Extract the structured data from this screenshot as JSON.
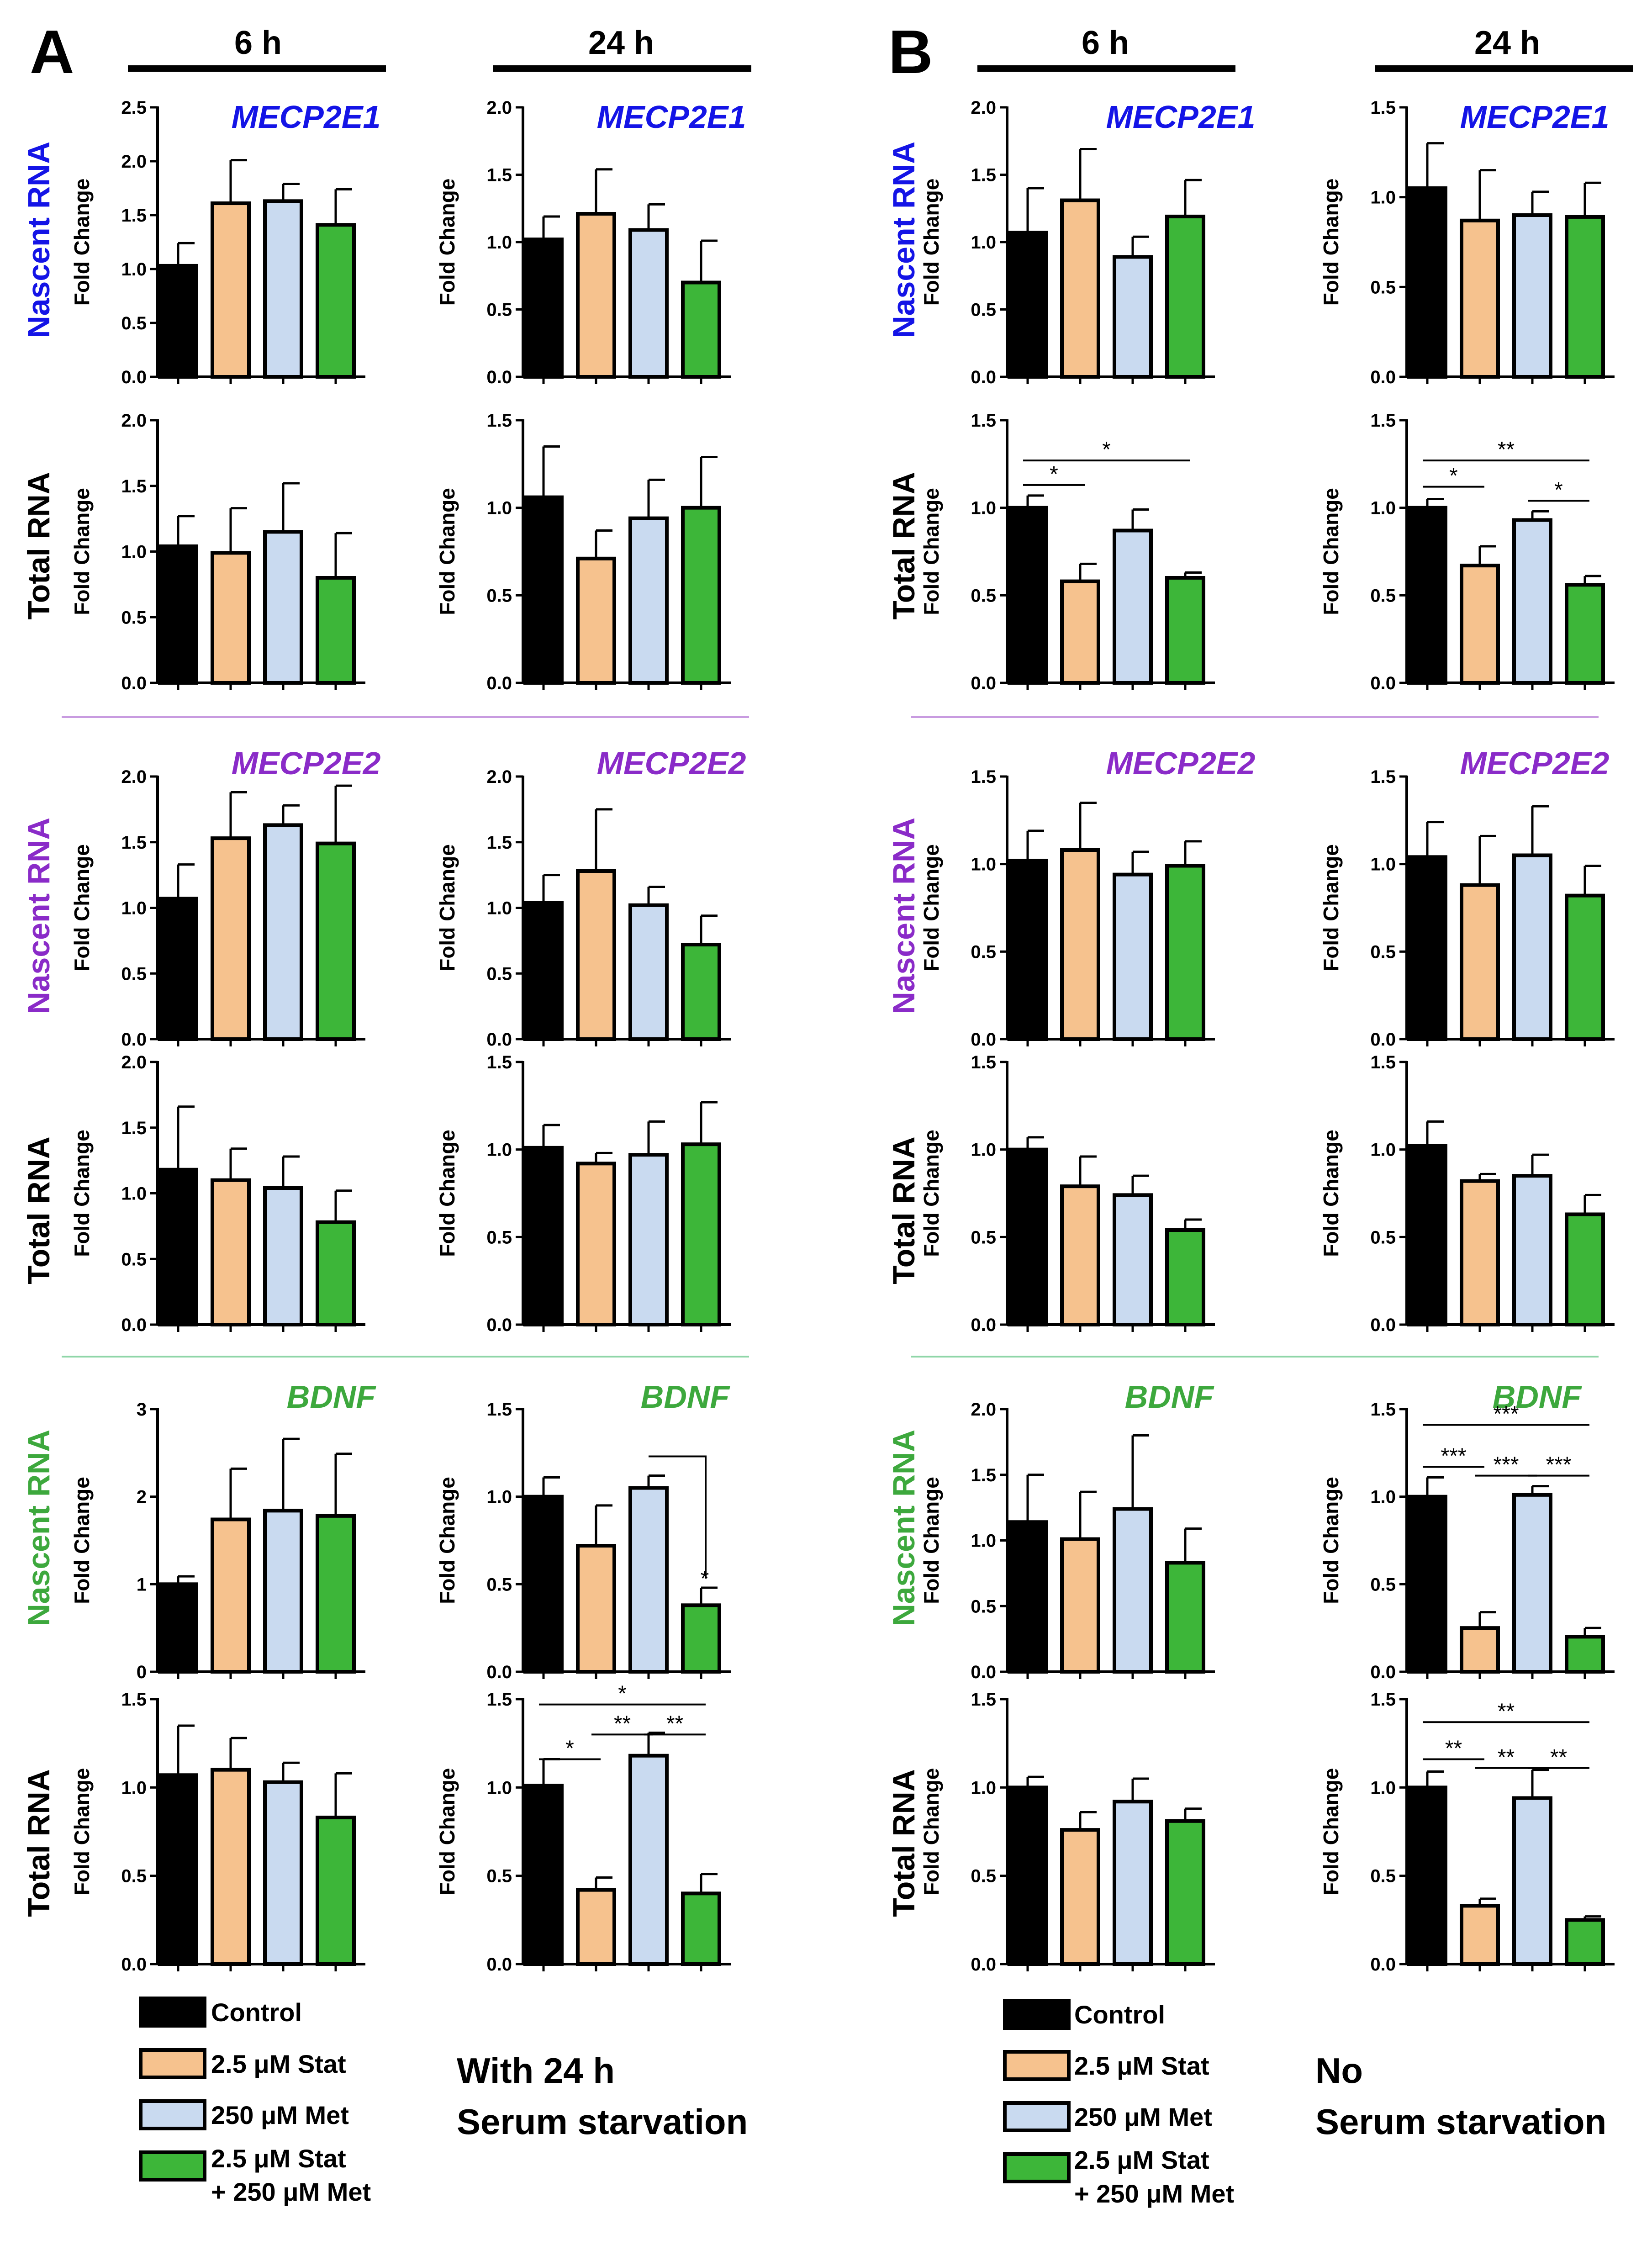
{
  "colors": {
    "control": "#000000",
    "stat": "#F6C28E",
    "met": "#C9DAF0",
    "combo": "#3DB639",
    "mecp2e1": "#1414E6",
    "mecp2e2": "#8A2BC8",
    "bdnf": "#3DA83D",
    "sep_purple": "#C89BE0",
    "sep_green": "#8FD6A8"
  },
  "panels": {
    "A": {
      "letter": "A",
      "col1": "6 h",
      "col2": "24 h"
    },
    "B": {
      "letter": "B",
      "col1": "6 h",
      "col2": "24 h"
    }
  },
  "row_labels": {
    "nascent": "Nascent RNA",
    "total": "Total RNA"
  },
  "genes": {
    "mecp2e1": "MECP2E1",
    "mecp2e2": "MECP2E2",
    "bdnf": "BDNF"
  },
  "legend": {
    "items": [
      "Control",
      "2.5 μM Stat",
      "250 μM Met",
      "2.5 μM Stat",
      "+ 250 μM Met"
    ]
  },
  "conditions": {
    "A": {
      "line1": "With 24 h",
      "line2": "Serum starvation"
    },
    "B": {
      "line1": "No",
      "line2": "Serum starvation"
    }
  },
  "chart_data": [
    {
      "id": "A-6h-E1-nascent",
      "panel": "A",
      "time": "6 h",
      "gene": "MECP2E1",
      "rna": "Nascent RNA",
      "type": "bar",
      "ylabel": "Fold Change",
      "categories": [
        "Control",
        "2.5 μM Stat",
        "250 μM Met",
        "2.5 μM Stat + 250 μM Met"
      ],
      "values": [
        1.03,
        1.61,
        1.63,
        1.41
      ],
      "errors": [
        0.21,
        0.4,
        0.16,
        0.33
      ],
      "ylim": [
        0,
        2.5
      ],
      "ticks": [
        "0.0",
        "0.5",
        "1.0",
        "1.5",
        "2.0",
        "2.5"
      ],
      "sig": []
    },
    {
      "id": "A-24h-E1-nascent",
      "panel": "A",
      "time": "24 h",
      "gene": "MECP2E1",
      "rna": "Nascent RNA",
      "type": "bar",
      "ylabel": "Fold Change",
      "categories": [
        "Control",
        "2.5 μM Stat",
        "250 μM Met",
        "2.5 μM Stat + 250 μM Met"
      ],
      "values": [
        1.02,
        1.21,
        1.09,
        0.7
      ],
      "errors": [
        0.17,
        0.33,
        0.19,
        0.31
      ],
      "ylim": [
        0,
        2.0
      ],
      "ticks": [
        "0.0",
        "0.5",
        "1.0",
        "1.5",
        "2.0"
      ],
      "sig": []
    },
    {
      "id": "A-6h-E1-total",
      "panel": "A",
      "time": "6 h",
      "gene": "MECP2E1",
      "rna": "Total RNA",
      "type": "bar",
      "ylabel": "Fold Change",
      "categories": [
        "Control",
        "2.5 μM Stat",
        "250 μM Met",
        "2.5 μM Stat + 250 μM Met"
      ],
      "values": [
        1.04,
        0.99,
        1.15,
        0.8
      ],
      "errors": [
        0.23,
        0.34,
        0.37,
        0.34
      ],
      "ylim": [
        0,
        2.0
      ],
      "ticks": [
        "0.0",
        "0.5",
        "1.0",
        "1.5",
        "2.0"
      ],
      "sig": []
    },
    {
      "id": "A-24h-E1-total",
      "panel": "A",
      "time": "24 h",
      "gene": "MECP2E1",
      "rna": "Total RNA",
      "type": "bar",
      "ylabel": "Fold Change",
      "categories": [
        "Control",
        "2.5 μM Stat",
        "250 μM Met",
        "2.5 μM Stat + 250 μM Met"
      ],
      "values": [
        1.06,
        0.71,
        0.94,
        1.0
      ],
      "errors": [
        0.29,
        0.16,
        0.22,
        0.29
      ],
      "ylim": [
        0,
        1.5
      ],
      "ticks": [
        "0.0",
        "0.5",
        "1.0",
        "1.5"
      ],
      "sig": []
    },
    {
      "id": "A-6h-E2-nascent",
      "panel": "A",
      "time": "6 h",
      "gene": "MECP2E2",
      "rna": "Nascent RNA",
      "type": "bar",
      "ylabel": "Fold Change",
      "categories": [
        "Control",
        "2.5 μM Stat",
        "250 μM Met",
        "2.5 μM Stat + 250 μM Met"
      ],
      "values": [
        1.07,
        1.53,
        1.63,
        1.49
      ],
      "errors": [
        0.26,
        0.35,
        0.15,
        0.44
      ],
      "ylim": [
        0,
        2.0
      ],
      "ticks": [
        "0.0",
        "0.5",
        "1.0",
        "1.5",
        "2.0"
      ],
      "sig": []
    },
    {
      "id": "A-24h-E2-nascent",
      "panel": "A",
      "time": "24 h",
      "gene": "MECP2E2",
      "rna": "Nascent RNA",
      "type": "bar",
      "ylabel": "Fold Change",
      "categories": [
        "Control",
        "2.5 μM Stat",
        "250 μM Met",
        "2.5 μM Stat + 250 μM Met"
      ],
      "values": [
        1.04,
        1.28,
        1.02,
        0.72
      ],
      "errors": [
        0.21,
        0.47,
        0.14,
        0.22
      ],
      "ylim": [
        0,
        2.0
      ],
      "ticks": [
        "0.0",
        "0.5",
        "1.0",
        "1.5",
        "2.0"
      ],
      "sig": []
    },
    {
      "id": "A-6h-E2-total",
      "panel": "A",
      "time": "6 h",
      "gene": "MECP2E2",
      "rna": "Total RNA",
      "type": "bar",
      "ylabel": "Fold Change",
      "categories": [
        "Control",
        "2.5 μM Stat",
        "250 μM Met",
        "2.5 μM Stat + 250 μM Met"
      ],
      "values": [
        1.18,
        1.1,
        1.04,
        0.78
      ],
      "errors": [
        0.48,
        0.24,
        0.24,
        0.24
      ],
      "ylim": [
        0,
        2.0
      ],
      "ticks": [
        "0.0",
        "0.5",
        "1.0",
        "1.5",
        "2.0"
      ],
      "sig": []
    },
    {
      "id": "A-24h-E2-total",
      "panel": "A",
      "time": "24 h",
      "gene": "MECP2E2",
      "rna": "Total RNA",
      "type": "bar",
      "ylabel": "Fold Change",
      "categories": [
        "Control",
        "2.5 μM Stat",
        "250 μM Met",
        "2.5 μM Stat + 250 μM Met"
      ],
      "values": [
        1.01,
        0.92,
        0.97,
        1.03
      ],
      "errors": [
        0.13,
        0.06,
        0.19,
        0.24
      ],
      "ylim": [
        0,
        1.5
      ],
      "ticks": [
        "0.0",
        "0.5",
        "1.0",
        "1.5"
      ],
      "sig": []
    },
    {
      "id": "A-6h-BDNF-nascent",
      "panel": "A",
      "time": "6 h",
      "gene": "BDNF",
      "rna": "Nascent RNA",
      "type": "bar",
      "ylabel": "Fold Change",
      "categories": [
        "Control",
        "2.5 μM Stat",
        "250 μM Met",
        "2.5 μM Stat + 250 μM Met"
      ],
      "values": [
        1.0,
        1.74,
        1.84,
        1.78
      ],
      "errors": [
        0.09,
        0.58,
        0.82,
        0.71
      ],
      "ylim": [
        0,
        3
      ],
      "ticks": [
        "0",
        "1",
        "2",
        "3"
      ],
      "sig": []
    },
    {
      "id": "A-24h-BDNF-nascent",
      "panel": "A",
      "time": "24 h",
      "gene": "BDNF",
      "rna": "Nascent RNA",
      "type": "bar",
      "ylabel": "Fold Change",
      "categories": [
        "Control",
        "2.5 μM Stat",
        "250 μM Met",
        "2.5 μM Stat + 250 μM Met"
      ],
      "values": [
        1.0,
        0.72,
        1.05,
        0.38
      ],
      "errors": [
        0.11,
        0.23,
        0.07,
        0.1
      ],
      "ylim": [
        0,
        1.5
      ],
      "ticks": [
        "0.0",
        "0.5",
        "1.0",
        "1.5"
      ],
      "sig": [
        {
          "a": 2,
          "b": 3,
          "label": "*",
          "y": 1.23,
          "style": "bracket"
        }
      ]
    },
    {
      "id": "A-6h-BDNF-total",
      "panel": "A",
      "time": "6 h",
      "gene": "BDNF",
      "rna": "Total RNA",
      "type": "bar",
      "ylabel": "Fold Change",
      "categories": [
        "Control",
        "2.5 μM Stat",
        "250 μM Met",
        "2.5 μM Stat + 250 μM Met"
      ],
      "values": [
        1.07,
        1.1,
        1.03,
        0.83
      ],
      "errors": [
        0.28,
        0.18,
        0.11,
        0.25
      ],
      "ylim": [
        0,
        1.5
      ],
      "ticks": [
        "0.0",
        "0.5",
        "1.0",
        "1.5"
      ],
      "sig": []
    },
    {
      "id": "A-24h-BDNF-total",
      "panel": "A",
      "time": "24 h",
      "gene": "BDNF",
      "rna": "Total RNA",
      "type": "bar",
      "ylabel": "Fold Change",
      "categories": [
        "Control",
        "2.5 μM Stat",
        "250 μM Met",
        "2.5 μM Stat + 250 μM Met"
      ],
      "values": [
        1.01,
        0.42,
        1.18,
        0.4
      ],
      "errors": [
        0.15,
        0.07,
        0.13,
        0.11
      ],
      "ylim": [
        0,
        1.5
      ],
      "ticks": [
        "0.0",
        "0.5",
        "1.0",
        "1.5"
      ],
      "sig": [
        {
          "a": 0,
          "b": 3,
          "label": "*",
          "y": 1.47
        },
        {
          "a": 0,
          "b": 1,
          "label": "*",
          "y": 1.16
        },
        {
          "a": 1,
          "b": 2,
          "label": "**",
          "y": 1.3
        },
        {
          "a": 2,
          "b": 3,
          "label": "**",
          "y": 1.3
        }
      ]
    },
    {
      "id": "B-6h-E1-nascent",
      "panel": "B",
      "time": "6 h",
      "gene": "MECP2E1",
      "rna": "Nascent RNA",
      "type": "bar",
      "ylabel": "Fold Change",
      "categories": [
        "Control",
        "2.5 μM Stat",
        "250 μM Met",
        "2.5 μM Stat + 250 μM Met"
      ],
      "values": [
        1.07,
        1.31,
        0.89,
        1.19
      ],
      "errors": [
        0.33,
        0.38,
        0.15,
        0.27
      ],
      "ylim": [
        0,
        2.0
      ],
      "ticks": [
        "0.0",
        "0.5",
        "1.0",
        "1.5",
        "2.0"
      ],
      "sig": []
    },
    {
      "id": "B-24h-E1-nascent",
      "panel": "B",
      "time": "24 h",
      "gene": "MECP2E1",
      "rna": "Nascent RNA",
      "type": "bar",
      "ylabel": "Fold Change",
      "categories": [
        "Control",
        "2.5 μM Stat",
        "250 μM Met",
        "2.5 μM Stat + 250 μM Met"
      ],
      "values": [
        1.05,
        0.87,
        0.9,
        0.89
      ],
      "errors": [
        0.25,
        0.28,
        0.13,
        0.19
      ],
      "ylim": [
        0,
        1.5
      ],
      "ticks": [
        "0.0",
        "0.5",
        "1.0",
        "1.5"
      ],
      "sig": []
    },
    {
      "id": "B-6h-E1-total",
      "panel": "B",
      "time": "6 h",
      "gene": "MECP2E1",
      "rna": "Total RNA",
      "type": "bar",
      "ylabel": "Fold Change",
      "categories": [
        "Control",
        "2.5 μM Stat",
        "250 μM Met",
        "2.5 μM Stat + 250 μM Met"
      ],
      "values": [
        1.0,
        0.58,
        0.87,
        0.6
      ],
      "errors": [
        0.07,
        0.1,
        0.12,
        0.03
      ],
      "ylim": [
        0,
        1.5
      ],
      "ticks": [
        "0.0",
        "0.5",
        "1.0",
        "1.5"
      ],
      "sig": [
        {
          "a": 0,
          "b": 1,
          "label": "*",
          "y": 1.13
        },
        {
          "a": 0,
          "b": 3,
          "label": "*",
          "y": 1.27
        }
      ]
    },
    {
      "id": "B-24h-E1-total",
      "panel": "B",
      "time": "24 h",
      "gene": "MECP2E1",
      "rna": "Total RNA",
      "type": "bar",
      "ylabel": "Fold Change",
      "categories": [
        "Control",
        "2.5 μM Stat",
        "250 μM Met",
        "2.5 μM Stat + 250 μM Met"
      ],
      "values": [
        1.0,
        0.67,
        0.93,
        0.56
      ],
      "errors": [
        0.05,
        0.11,
        0.05,
        0.05
      ],
      "ylim": [
        0,
        1.5
      ],
      "ticks": [
        "0.0",
        "0.5",
        "1.0",
        "1.5"
      ],
      "sig": [
        {
          "a": 0,
          "b": 1,
          "label": "*",
          "y": 1.12
        },
        {
          "a": 0,
          "b": 3,
          "label": "**",
          "y": 1.27
        },
        {
          "a": 2,
          "b": 3,
          "label": "*",
          "y": 1.04
        }
      ]
    },
    {
      "id": "B-6h-E2-nascent",
      "panel": "B",
      "time": "6 h",
      "gene": "MECP2E2",
      "rna": "Nascent RNA",
      "type": "bar",
      "ylabel": "Fold Change",
      "categories": [
        "Control",
        "2.5 μM Stat",
        "250 μM Met",
        "2.5 μM Stat + 250 μM Met"
      ],
      "values": [
        1.02,
        1.08,
        0.94,
        0.99
      ],
      "errors": [
        0.17,
        0.27,
        0.13,
        0.14
      ],
      "ylim": [
        0,
        1.5
      ],
      "ticks": [
        "0.0",
        "0.5",
        "1.0",
        "1.5"
      ],
      "sig": []
    },
    {
      "id": "B-24h-E2-nascent",
      "panel": "B",
      "time": "24 h",
      "gene": "MECP2E2",
      "rna": "Nascent RNA",
      "type": "bar",
      "ylabel": "Fold Change",
      "categories": [
        "Control",
        "2.5 μM Stat",
        "250 μM Met",
        "2.5 μM Stat + 250 μM Met"
      ],
      "values": [
        1.04,
        0.88,
        1.05,
        0.82
      ],
      "errors": [
        0.2,
        0.28,
        0.28,
        0.17
      ],
      "ylim": [
        0,
        1.5
      ],
      "ticks": [
        "0.0",
        "0.5",
        "1.0",
        "1.5"
      ],
      "sig": []
    },
    {
      "id": "B-6h-E2-total",
      "panel": "B",
      "time": "6 h",
      "gene": "MECP2E2",
      "rna": "Total RNA",
      "type": "bar",
      "ylabel": "Fold Change",
      "categories": [
        "Control",
        "2.5 μM Stat",
        "250 μM Met",
        "2.5 μM Stat + 250 μM Met"
      ],
      "values": [
        1.0,
        0.79,
        0.74,
        0.54
      ],
      "errors": [
        0.07,
        0.17,
        0.11,
        0.06
      ],
      "ylim": [
        0,
        1.5
      ],
      "ticks": [
        "0.0",
        "0.5",
        "1.0",
        "1.5"
      ],
      "sig": []
    },
    {
      "id": "B-24h-E2-total",
      "panel": "B",
      "time": "24 h",
      "gene": "MECP2E2",
      "rna": "Total RNA",
      "type": "bar",
      "ylabel": "Fold Change",
      "categories": [
        "Control",
        "2.5 μM Stat",
        "250 μM Met",
        "2.5 μM Stat + 250 μM Met"
      ],
      "values": [
        1.02,
        0.82,
        0.85,
        0.63
      ],
      "errors": [
        0.14,
        0.04,
        0.12,
        0.11
      ],
      "ylim": [
        0,
        1.5
      ],
      "ticks": [
        "0.0",
        "0.5",
        "1.0",
        "1.5"
      ],
      "sig": []
    },
    {
      "id": "B-6h-BDNF-nascent",
      "panel": "B",
      "time": "6 h",
      "gene": "BDNF",
      "rna": "Nascent RNA",
      "type": "bar",
      "ylabel": "Fold Change",
      "categories": [
        "Control",
        "2.5 μM Stat",
        "250 μM Met",
        "2.5 μM Stat + 250 μM Met"
      ],
      "values": [
        1.14,
        1.01,
        1.24,
        0.83
      ],
      "errors": [
        0.36,
        0.36,
        0.56,
        0.26
      ],
      "ylim": [
        0,
        2.0
      ],
      "ticks": [
        "0.0",
        "0.5",
        "1.0",
        "1.5",
        "2.0"
      ],
      "sig": []
    },
    {
      "id": "B-24h-BDNF-nascent",
      "panel": "B",
      "time": "24 h",
      "gene": "BDNF",
      "rna": "Nascent RNA",
      "type": "bar",
      "ylabel": "Fold Change",
      "categories": [
        "Control",
        "2.5 μM Stat",
        "250 μM Met",
        "2.5 μM Stat + 250 μM Met"
      ],
      "values": [
        1.0,
        0.25,
        1.01,
        0.2
      ],
      "errors": [
        0.11,
        0.09,
        0.05,
        0.05
      ],
      "ylim": [
        0,
        1.5
      ],
      "ticks": [
        "0.0",
        "0.5",
        "1.0",
        "1.5"
      ],
      "sig": [
        {
          "a": 0,
          "b": 3,
          "label": "***",
          "y": 1.41
        },
        {
          "a": 0,
          "b": 1,
          "label": "***",
          "y": 1.17
        },
        {
          "a": 1,
          "b": 2,
          "label": "***",
          "y": 1.12
        },
        {
          "a": 2,
          "b": 3,
          "label": "***",
          "y": 1.12
        }
      ]
    },
    {
      "id": "B-6h-BDNF-total",
      "panel": "B",
      "time": "6 h",
      "gene": "BDNF",
      "rna": "Total RNA",
      "type": "bar",
      "ylabel": "Fold Change",
      "categories": [
        "Control",
        "2.5 μM Stat",
        "250 μM Met",
        "2.5 μM Stat + 250 μM Met"
      ],
      "values": [
        1.0,
        0.76,
        0.92,
        0.81
      ],
      "errors": [
        0.06,
        0.1,
        0.13,
        0.07
      ],
      "ylim": [
        0,
        1.5
      ],
      "ticks": [
        "0.0",
        "0.5",
        "1.0",
        "1.5"
      ],
      "sig": []
    },
    {
      "id": "B-24h-BDNF-total",
      "panel": "B",
      "time": "24 h",
      "gene": "BDNF",
      "rna": "Total RNA",
      "type": "bar",
      "ylabel": "Fold Change",
      "categories": [
        "Control",
        "2.5 μM Stat",
        "250 μM Met",
        "2.5 μM Stat + 250 μM Met"
      ],
      "values": [
        1.0,
        0.33,
        0.94,
        0.25
      ],
      "errors": [
        0.09,
        0.04,
        0.16,
        0.02
      ],
      "ylim": [
        0,
        1.5
      ],
      "ticks": [
        "0.0",
        "0.5",
        "1.0",
        "1.5"
      ],
      "sig": [
        {
          "a": 0,
          "b": 3,
          "label": "**",
          "y": 1.37
        },
        {
          "a": 0,
          "b": 1,
          "label": "**",
          "y": 1.16
        },
        {
          "a": 1,
          "b": 2,
          "label": "**",
          "y": 1.11
        },
        {
          "a": 2,
          "b": 3,
          "label": "**",
          "y": 1.11
        }
      ]
    }
  ]
}
